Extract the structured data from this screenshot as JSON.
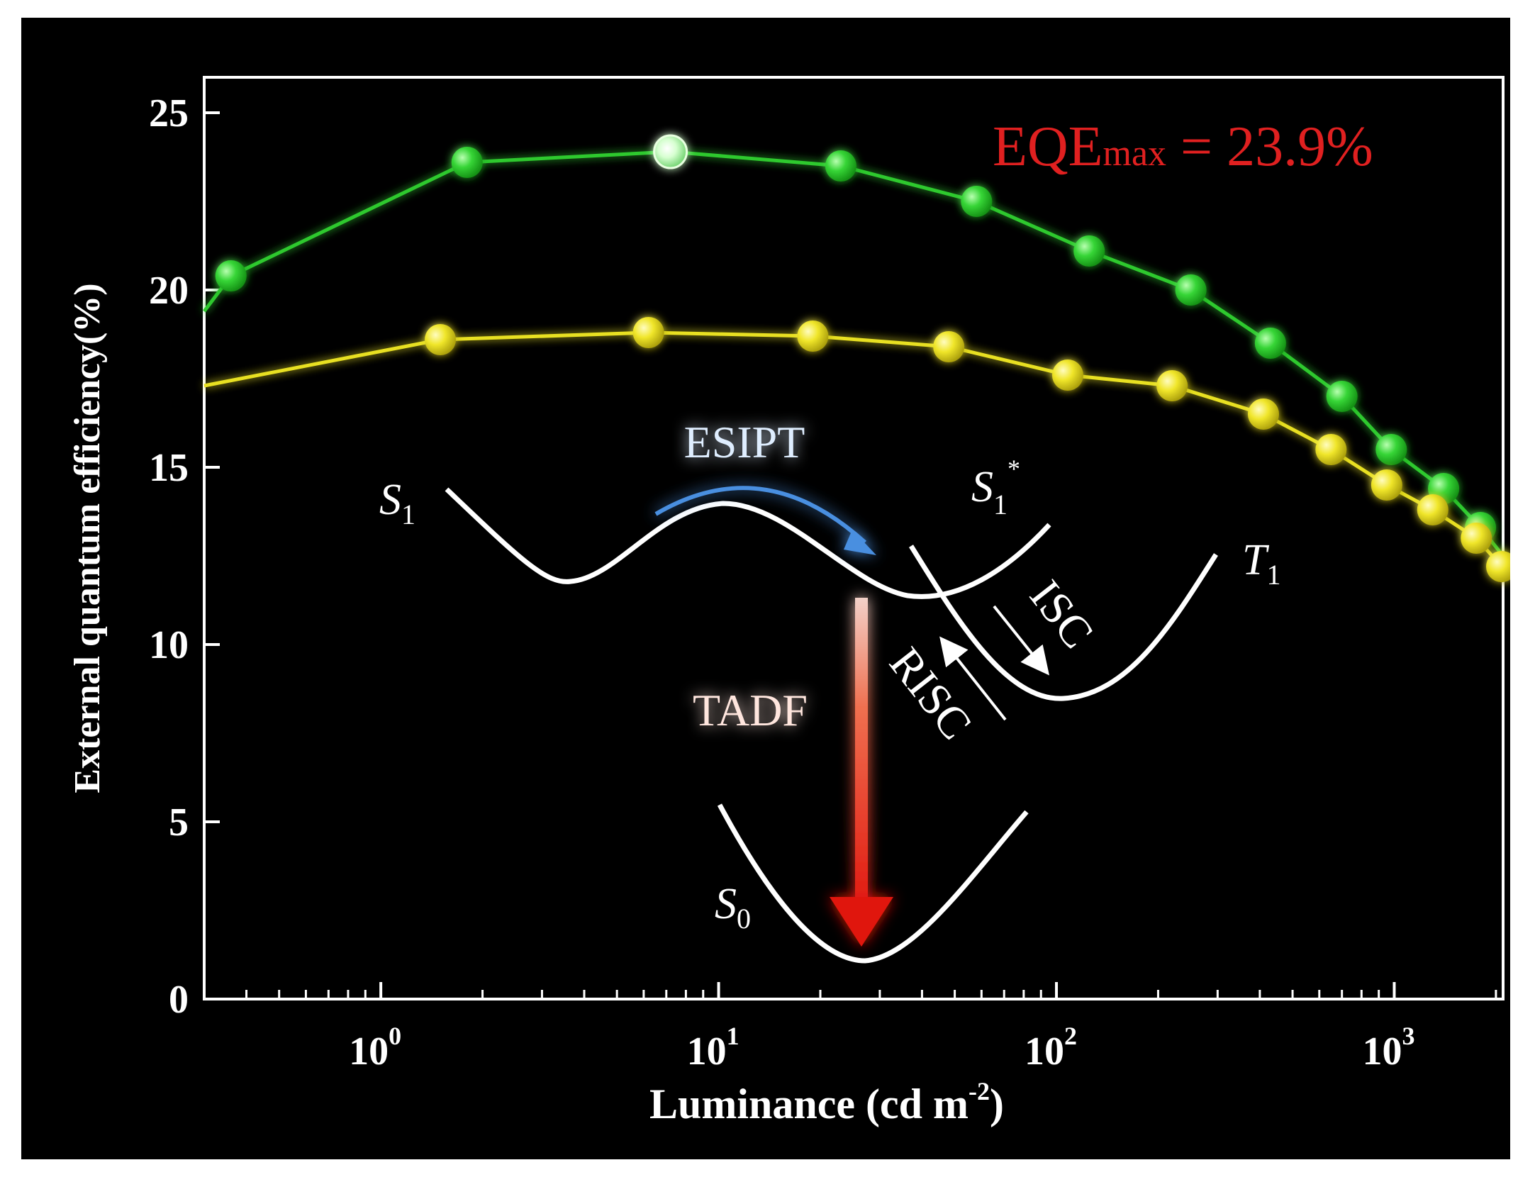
{
  "chart_data": {
    "type": "line",
    "title": "",
    "xlabel": "Luminance (cd m",
    "xlabel_sup": "-2",
    "xlabel_close": ")",
    "ylabel": "External quantum efficiency(%)",
    "xscale": "log",
    "xlim": [
      0.3,
      2100
    ],
    "ylim": [
      0,
      26
    ],
    "grid": false,
    "legend": "none",
    "y_ticks": [
      0,
      5,
      10,
      15,
      20,
      25
    ],
    "x_ticks": [
      {
        "value": 1,
        "base": "10",
        "exp": "0"
      },
      {
        "value": 10,
        "base": "10",
        "exp": "1"
      },
      {
        "value": 100,
        "base": "10",
        "exp": "2"
      },
      {
        "value": 1000,
        "base": "10",
        "exp": "3"
      }
    ],
    "series": [
      {
        "name": "green",
        "color": "#2fc92f",
        "x": [
          0.3,
          0.36,
          1.8,
          7.2,
          23,
          58,
          125,
          250,
          430,
          700,
          980,
          1400,
          1800,
          2100
        ],
        "y": [
          19.4,
          20.4,
          23.6,
          23.9,
          23.5,
          22.5,
          21.1,
          20.0,
          18.5,
          17.0,
          15.5,
          14.4,
          13.3,
          12.5
        ],
        "markers": [
          false,
          true,
          true,
          true,
          true,
          true,
          true,
          true,
          true,
          true,
          true,
          true,
          true,
          false
        ]
      },
      {
        "name": "yellow",
        "color": "#e8e020",
        "x": [
          0.3,
          1.5,
          6.2,
          19,
          48,
          108,
          220,
          410,
          650,
          950,
          1300,
          1750,
          2080
        ],
        "y": [
          17.3,
          18.6,
          18.8,
          18.7,
          18.4,
          17.6,
          17.3,
          16.5,
          15.5,
          14.5,
          13.8,
          13.0,
          12.2
        ],
        "markers": [
          false,
          true,
          true,
          true,
          true,
          true,
          true,
          true,
          true,
          true,
          true,
          true,
          true
        ]
      }
    ],
    "highlight_point": {
      "series": "green",
      "index": 3
    },
    "annotation": {
      "prefix": "EQE",
      "sub": "max",
      "suffix": " = 23.9%",
      "color": "#e02020"
    }
  },
  "diagram": {
    "esipt_label": "ESIPT",
    "tadf_label": "TADF",
    "isc_label": "ISC",
    "risc_label": "RISC",
    "s1_label": "S",
    "s1_sub": "1",
    "s1star_label": "S",
    "s1star_sub": "1",
    "s1star_sup": "*",
    "t1_label": "T",
    "t1_sub": "1",
    "s0_label": "S",
    "s0_sub": "0"
  }
}
